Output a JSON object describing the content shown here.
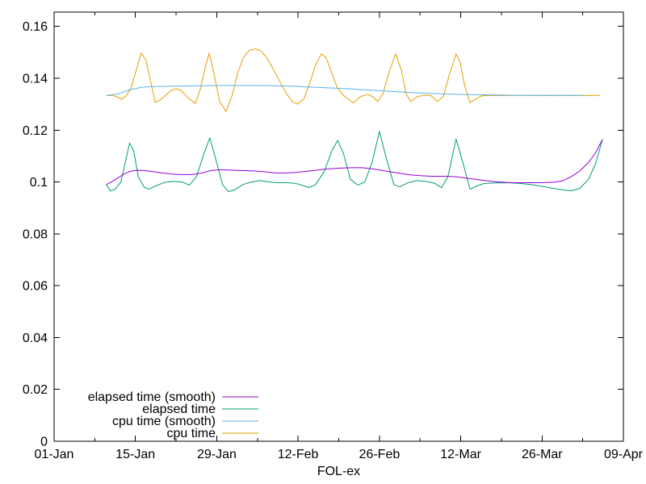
{
  "colors": {
    "background": "#ffffff",
    "axis": "#000000",
    "text": "#000000",
    "elapsed_smooth": "#9400d3",
    "elapsed": "#009e73",
    "cpu_smooth": "#56b4e9",
    "cpu": "#e69f00"
  },
  "chart_data": {
    "type": "line",
    "title": "",
    "xlabel": "FOL-ex",
    "ylabel": "",
    "grid": false,
    "legend_position": "inside bottom-left",
    "x_axis": {
      "unit": "date",
      "tick_labels": [
        "01-Jan",
        "15-Jan",
        "29-Jan",
        "12-Feb",
        "26-Feb",
        "12-Mar",
        "26-Mar",
        "09-Apr"
      ],
      "tick_days": [
        0,
        14,
        28,
        42,
        56,
        70,
        84,
        98
      ],
      "minor_tick_days": [
        7,
        21,
        35,
        49,
        63,
        77,
        91
      ],
      "range_days": [
        0,
        98
      ]
    },
    "y_axis": {
      "tick_labels": [
        "0",
        "0.02",
        "0.04",
        "0.06",
        "0.08",
        "0.1",
        "0.12",
        "0.14",
        "0.16"
      ],
      "tick_values": [
        0,
        0.02,
        0.04,
        0.06,
        0.08,
        0.1,
        0.12,
        0.14,
        0.16
      ],
      "range": [
        0,
        0.1655
      ]
    },
    "series": [
      {
        "name": "elapsed time (smooth)",
        "slug": "elapsed-time-smooth",
        "color": "#9400d3",
        "points": [
          [
            9,
            0.099
          ],
          [
            10,
            0.1002
          ],
          [
            11,
            0.1016
          ],
          [
            12,
            0.103
          ],
          [
            13,
            0.104
          ],
          [
            14,
            0.1045
          ],
          [
            15.5,
            0.1044
          ],
          [
            17,
            0.104
          ],
          [
            18.5,
            0.1035
          ],
          [
            20,
            0.1031
          ],
          [
            22,
            0.1028
          ],
          [
            24,
            0.1029
          ],
          [
            25.5,
            0.1035
          ],
          [
            27,
            0.1044
          ],
          [
            28.5,
            0.1047
          ],
          [
            30,
            0.1046
          ],
          [
            32,
            0.1044
          ],
          [
            34,
            0.1043
          ],
          [
            36,
            0.104
          ],
          [
            38,
            0.1035
          ],
          [
            39.5,
            0.1034
          ],
          [
            41,
            0.1036
          ],
          [
            43,
            0.104
          ],
          [
            45,
            0.1045
          ],
          [
            47,
            0.105
          ],
          [
            49,
            0.1053
          ],
          [
            51,
            0.1055
          ],
          [
            53,
            0.1055
          ],
          [
            55,
            0.105
          ],
          [
            57,
            0.1042
          ],
          [
            59,
            0.1035
          ],
          [
            61,
            0.1028
          ],
          [
            63,
            0.1024
          ],
          [
            65,
            0.1022
          ],
          [
            67,
            0.1022
          ],
          [
            68.5,
            0.1021
          ],
          [
            70,
            0.1018
          ],
          [
            72,
            0.1012
          ],
          [
            74,
            0.1006
          ],
          [
            76,
            0.1001
          ],
          [
            78,
            0.0998
          ],
          [
            80,
            0.0997
          ],
          [
            82,
            0.0997
          ],
          [
            84,
            0.0997
          ],
          [
            86,
            0.0999
          ],
          [
            87.5,
            0.1004
          ],
          [
            89,
            0.102
          ],
          [
            90.5,
            0.1042
          ],
          [
            92,
            0.1075
          ],
          [
            93.2,
            0.1112
          ],
          [
            94.4,
            0.1164
          ]
        ]
      },
      {
        "name": "elapsed time",
        "slug": "elapsed-time",
        "color": "#009e73",
        "points": [
          [
            9,
            0.099
          ],
          [
            9.7,
            0.0965
          ],
          [
            10.5,
            0.0972
          ],
          [
            11.5,
            0.1
          ],
          [
            12.4,
            0.109
          ],
          [
            13,
            0.115
          ],
          [
            13.7,
            0.112
          ],
          [
            14.5,
            0.102
          ],
          [
            15.5,
            0.098
          ],
          [
            16.3,
            0.0972
          ],
          [
            17.5,
            0.0985
          ],
          [
            19,
            0.0998
          ],
          [
            20.5,
            0.1002
          ],
          [
            22,
            0.1
          ],
          [
            23.3,
            0.0988
          ],
          [
            24.5,
            0.102
          ],
          [
            25.8,
            0.111
          ],
          [
            26.8,
            0.117
          ],
          [
            27.8,
            0.109
          ],
          [
            29,
            0.099
          ],
          [
            30,
            0.0963
          ],
          [
            31,
            0.0968
          ],
          [
            32.5,
            0.099
          ],
          [
            34,
            0.1
          ],
          [
            35.5,
            0.1005
          ],
          [
            37,
            0.1
          ],
          [
            38.5,
            0.0997
          ],
          [
            40,
            0.0997
          ],
          [
            41.5,
            0.0995
          ],
          [
            43,
            0.0985
          ],
          [
            43.9,
            0.0978
          ],
          [
            45,
            0.099
          ],
          [
            46.5,
            0.104
          ],
          [
            47.8,
            0.112
          ],
          [
            48.8,
            0.116
          ],
          [
            49.8,
            0.111
          ],
          [
            51,
            0.101
          ],
          [
            52.3,
            0.0988
          ],
          [
            53.5,
            0.1
          ],
          [
            54.8,
            0.108
          ],
          [
            56,
            0.1195
          ],
          [
            57.2,
            0.109
          ],
          [
            58.5,
            0.099
          ],
          [
            59.5,
            0.0981
          ],
          [
            61,
            0.0998
          ],
          [
            62.5,
            0.1005
          ],
          [
            64,
            0.1002
          ],
          [
            65.5,
            0.0995
          ],
          [
            66.7,
            0.0978
          ],
          [
            67.8,
            0.102
          ],
          [
            69.2,
            0.1166
          ],
          [
            70.3,
            0.108
          ],
          [
            71.6,
            0.0972
          ],
          [
            72.8,
            0.0985
          ],
          [
            74,
            0.0994
          ],
          [
            76,
            0.0996
          ],
          [
            78,
            0.0997
          ],
          [
            80,
            0.0995
          ],
          [
            82,
            0.099
          ],
          [
            84,
            0.0983
          ],
          [
            86,
            0.0975
          ],
          [
            88,
            0.0968
          ],
          [
            89,
            0.0966
          ],
          [
            90.5,
            0.0975
          ],
          [
            92,
            0.101
          ],
          [
            93.2,
            0.107
          ],
          [
            94.4,
            0.1164
          ]
        ]
      },
      {
        "name": "cpu time (smooth)",
        "slug": "cpu-time-smooth",
        "color": "#56b4e9",
        "points": [
          [
            9,
            0.1333
          ],
          [
            11,
            0.134
          ],
          [
            13,
            0.1355
          ],
          [
            15,
            0.1365
          ],
          [
            17,
            0.1368
          ],
          [
            20,
            0.1369
          ],
          [
            23,
            0.137
          ],
          [
            26,
            0.1371
          ],
          [
            29,
            0.1372
          ],
          [
            32,
            0.1372
          ],
          [
            35,
            0.1372
          ],
          [
            38,
            0.1371
          ],
          [
            41,
            0.1369
          ],
          [
            44,
            0.1366
          ],
          [
            47,
            0.1363
          ],
          [
            50,
            0.136
          ],
          [
            53,
            0.1356
          ],
          [
            56,
            0.1352
          ],
          [
            59,
            0.1348
          ],
          [
            62,
            0.1344
          ],
          [
            65,
            0.1341
          ],
          [
            68,
            0.1339
          ],
          [
            71,
            0.1337
          ],
          [
            74,
            0.1336
          ],
          [
            77,
            0.1335
          ],
          [
            80,
            0.1334
          ],
          [
            83,
            0.1334
          ],
          [
            86,
            0.1334
          ],
          [
            89,
            0.1334
          ],
          [
            91,
            0.1334
          ]
        ]
      },
      {
        "name": "cpu time",
        "slug": "cpu-time",
        "color": "#e69f00",
        "points": [
          [
            9,
            0.1333
          ],
          [
            9.8,
            0.1334
          ],
          [
            10.8,
            0.133
          ],
          [
            11.6,
            0.1318
          ],
          [
            12.4,
            0.1332
          ],
          [
            13.2,
            0.136
          ],
          [
            14,
            0.142
          ],
          [
            15,
            0.1497
          ],
          [
            15.8,
            0.147
          ],
          [
            16.6,
            0.139
          ],
          [
            17.4,
            0.1307
          ],
          [
            18.2,
            0.1315
          ],
          [
            19,
            0.133
          ],
          [
            20,
            0.135
          ],
          [
            21,
            0.136
          ],
          [
            22,
            0.135
          ],
          [
            23,
            0.1325
          ],
          [
            24.3,
            0.1303
          ],
          [
            25.2,
            0.136
          ],
          [
            26,
            0.144
          ],
          [
            26.7,
            0.1497
          ],
          [
            27.5,
            0.142
          ],
          [
            28.5,
            0.131
          ],
          [
            29.6,
            0.1272
          ],
          [
            30.6,
            0.133
          ],
          [
            31.6,
            0.142
          ],
          [
            32.6,
            0.148
          ],
          [
            33.6,
            0.1508
          ],
          [
            34.6,
            0.1513
          ],
          [
            35.6,
            0.1505
          ],
          [
            36.6,
            0.148
          ],
          [
            37.6,
            0.144
          ],
          [
            38.8,
            0.139
          ],
          [
            40,
            0.134
          ],
          [
            41,
            0.131
          ],
          [
            41.9,
            0.13
          ],
          [
            43,
            0.132
          ],
          [
            44,
            0.138
          ],
          [
            45,
            0.145
          ],
          [
            46,
            0.1494
          ],
          [
            46.8,
            0.148
          ],
          [
            47.8,
            0.142
          ],
          [
            48.8,
            0.136
          ],
          [
            50,
            0.133
          ],
          [
            51.5,
            0.1305
          ],
          [
            52.8,
            0.133
          ],
          [
            54,
            0.1337
          ],
          [
            54.8,
            0.133
          ],
          [
            55.7,
            0.131
          ],
          [
            56.6,
            0.134
          ],
          [
            57.6,
            0.142
          ],
          [
            58.8,
            0.1494
          ],
          [
            59.8,
            0.143
          ],
          [
            60.6,
            0.134
          ],
          [
            61.4,
            0.131
          ],
          [
            62.4,
            0.1328
          ],
          [
            63.5,
            0.1334
          ],
          [
            64.8,
            0.1334
          ],
          [
            66,
            0.131
          ],
          [
            67,
            0.133
          ],
          [
            68,
            0.141
          ],
          [
            69.2,
            0.1494
          ],
          [
            69.9,
            0.146
          ],
          [
            70.7,
            0.137
          ],
          [
            71.6,
            0.1306
          ],
          [
            72.6,
            0.132
          ],
          [
            73.6,
            0.1332
          ],
          [
            75,
            0.1334
          ],
          [
            77,
            0.1333
          ],
          [
            79,
            0.1334
          ],
          [
            81,
            0.1334
          ],
          [
            83,
            0.1333
          ],
          [
            85,
            0.1334
          ],
          [
            87,
            0.1333
          ],
          [
            89,
            0.1334
          ],
          [
            91,
            0.1333
          ],
          [
            93,
            0.1334
          ],
          [
            94,
            0.1334
          ]
        ]
      }
    ],
    "legend_entries": [
      "elapsed time (smooth)",
      "elapsed time",
      "cpu time (smooth)",
      "cpu time"
    ]
  }
}
